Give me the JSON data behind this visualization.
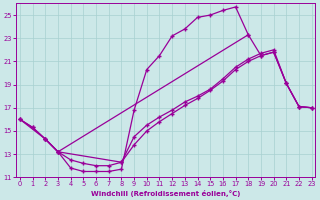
{
  "xlabel": "Windchill (Refroidissement éolien,°C)",
  "bg_color": "#cce8e8",
  "line_color": "#990099",
  "xlim_min": -0.3,
  "xlim_max": 23.3,
  "ylim_min": 11,
  "ylim_max": 26,
  "yticks": [
    11,
    13,
    15,
    17,
    19,
    21,
    23,
    25
  ],
  "xticks": [
    0,
    1,
    2,
    3,
    4,
    5,
    6,
    7,
    8,
    9,
    10,
    11,
    12,
    13,
    14,
    15,
    16,
    17,
    18,
    19,
    20,
    21,
    22,
    23
  ],
  "line1_x": [
    0,
    1,
    2,
    3,
    4,
    5,
    6,
    7,
    8,
    9,
    10,
    11,
    12,
    13,
    14,
    15,
    16,
    17,
    18
  ],
  "line1_y": [
    16.0,
    15.3,
    14.3,
    13.2,
    11.8,
    11.5,
    11.5,
    11.5,
    11.7,
    16.8,
    20.3,
    21.5,
    23.2,
    23.8,
    24.8,
    25.0,
    25.4,
    25.7,
    23.3
  ],
  "line2_x": [
    0,
    2,
    3,
    18,
    19,
    20,
    21,
    22,
    23
  ],
  "line2_y": [
    16.0,
    14.3,
    13.2,
    23.3,
    21.5,
    21.8,
    19.1,
    17.1,
    17.0
  ],
  "line3_x": [
    0,
    1,
    2,
    3,
    4,
    5,
    6,
    7,
    8,
    9,
    10,
    11,
    12,
    13,
    14,
    15,
    16,
    17,
    18,
    19,
    20,
    21,
    22,
    23
  ],
  "line3_y": [
    16.0,
    15.3,
    14.3,
    13.2,
    12.5,
    12.2,
    12.0,
    12.0,
    12.3,
    13.8,
    15.0,
    15.8,
    16.5,
    17.2,
    17.8,
    18.5,
    19.3,
    20.3,
    21.0,
    21.5,
    21.8,
    19.1,
    17.1,
    17.0
  ],
  "line4_x": [
    2,
    3,
    8,
    9,
    10,
    11,
    12,
    13,
    14,
    15,
    16,
    17,
    18,
    19,
    20,
    21,
    22,
    23
  ],
  "line4_y": [
    14.3,
    13.2,
    12.3,
    14.5,
    15.5,
    16.2,
    16.8,
    17.5,
    18.0,
    18.6,
    19.5,
    20.5,
    21.2,
    21.7,
    22.0,
    19.1,
    17.1,
    17.0
  ]
}
